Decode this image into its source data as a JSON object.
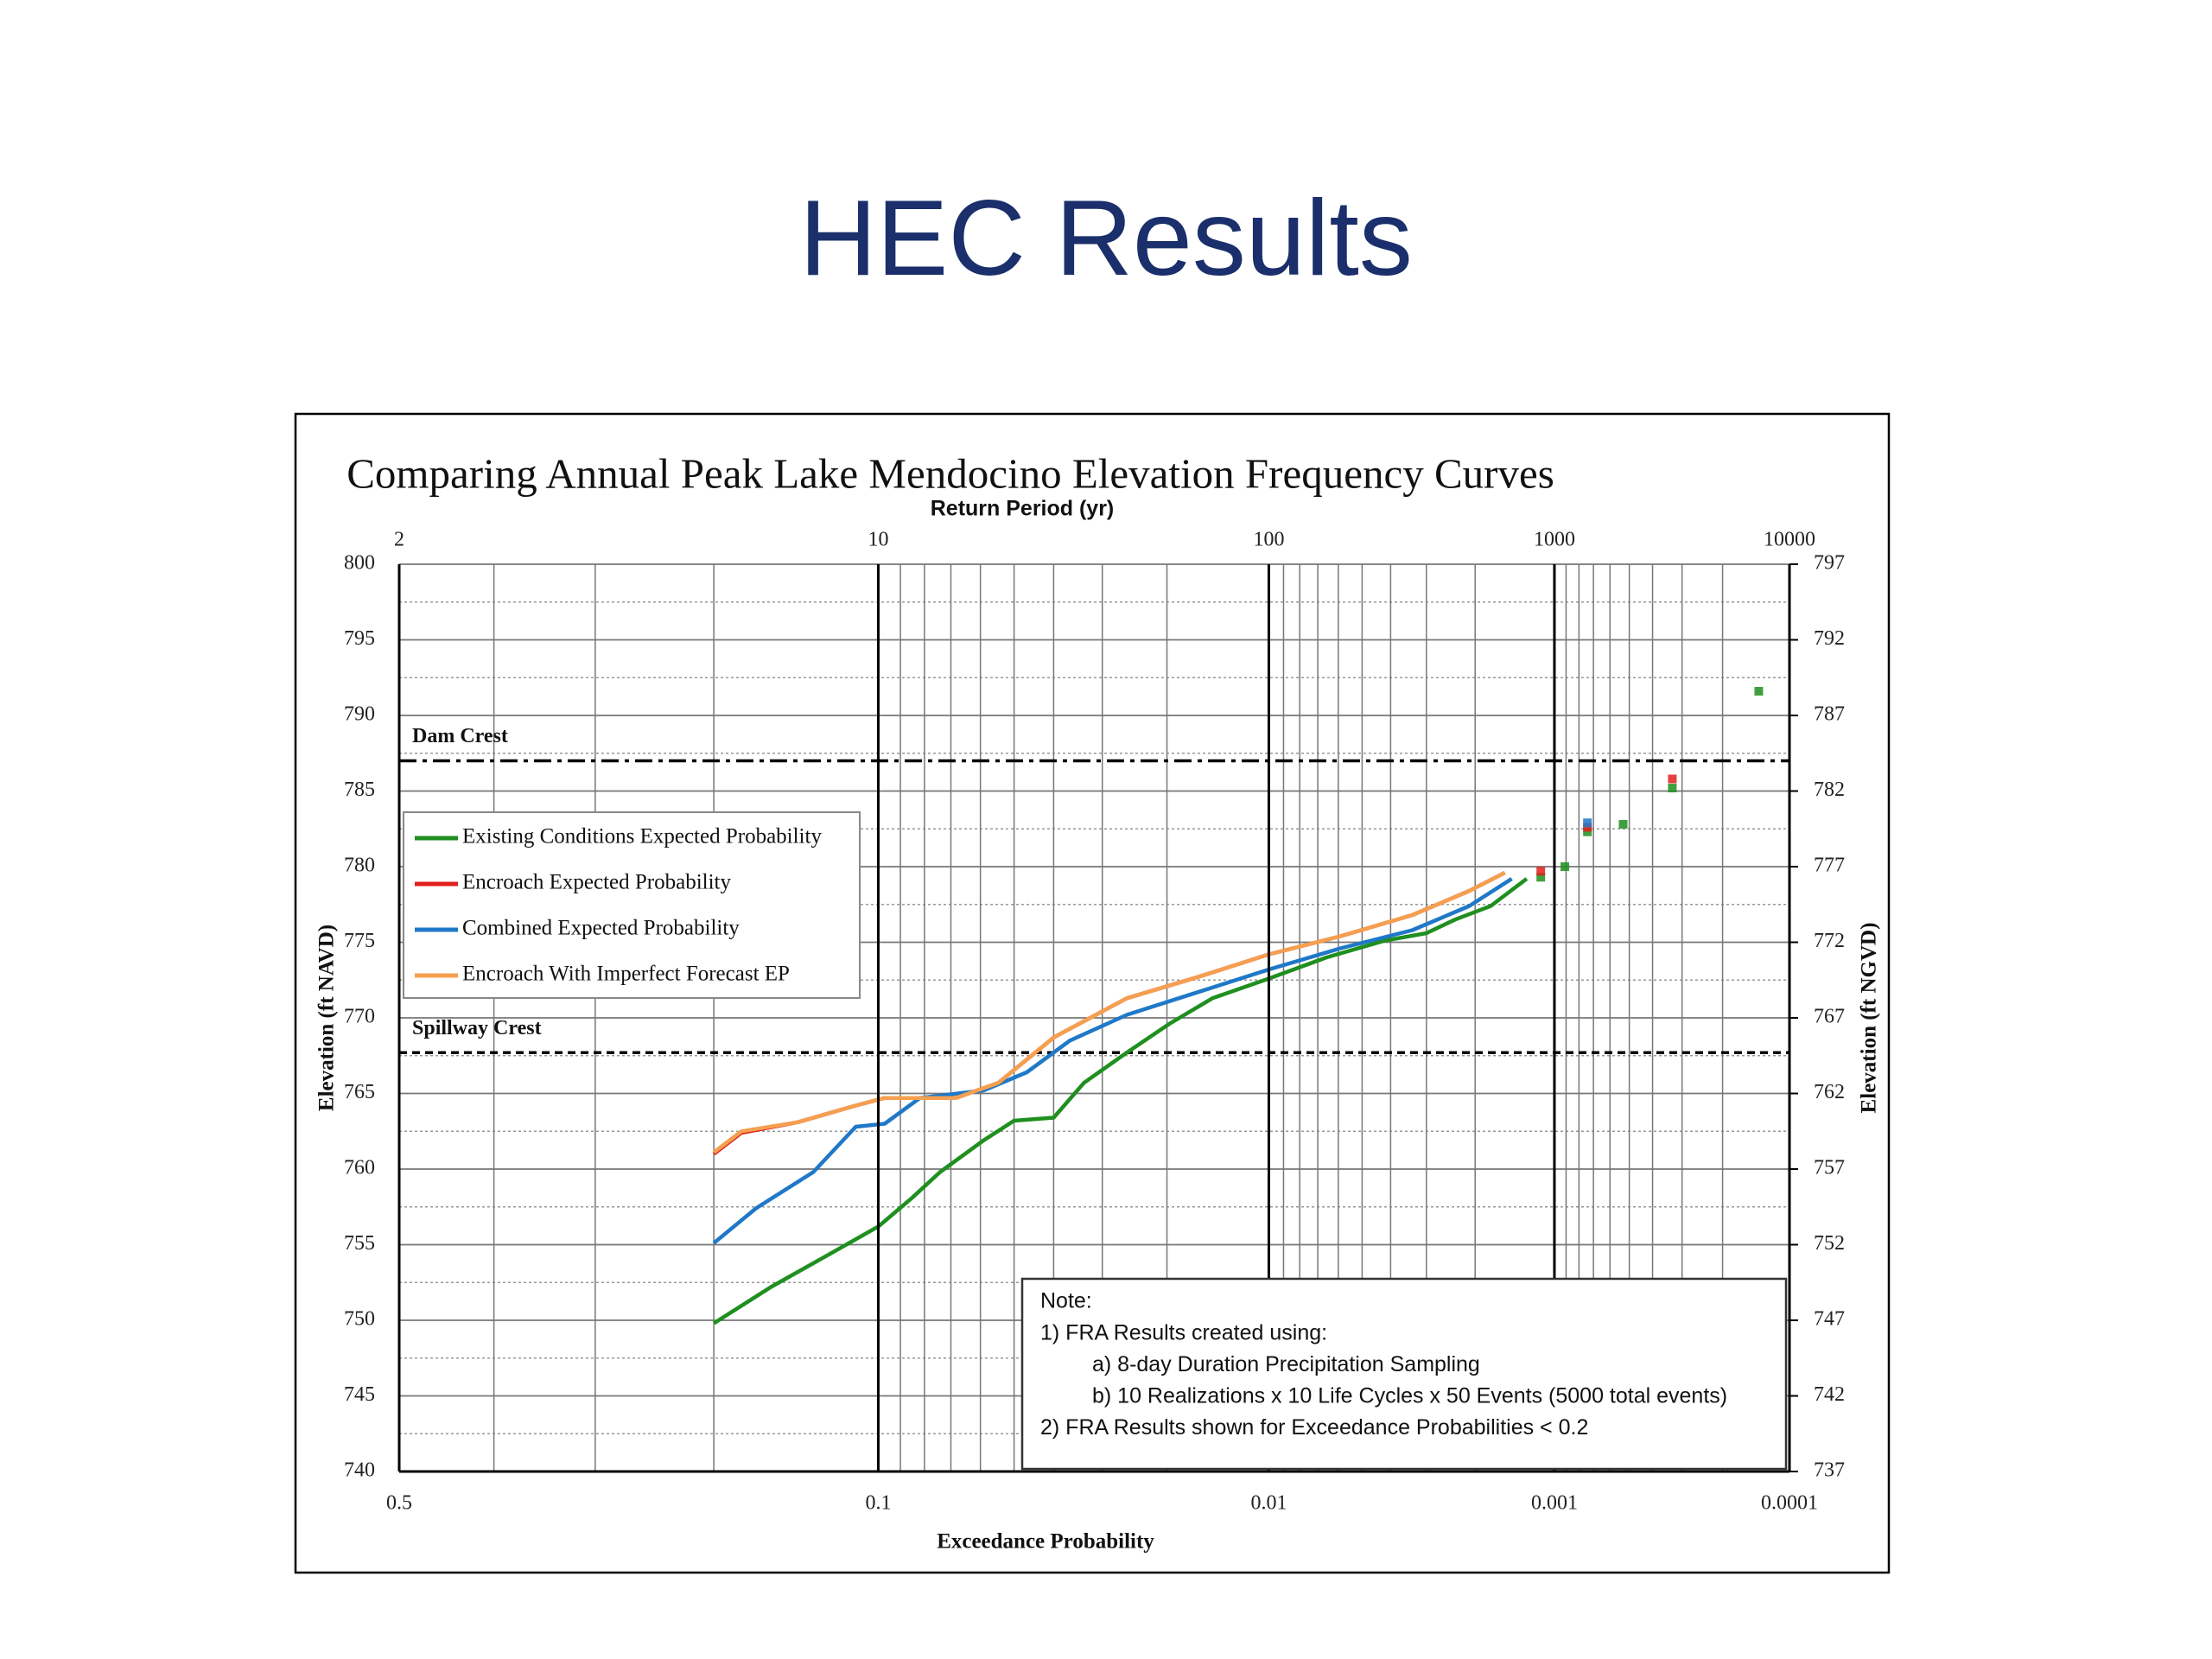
{
  "title": "HEC Results",
  "chart_data": {
    "type": "line",
    "title": "Comparing Annual Peak Lake Mendocino Elevation Frequency Curves",
    "x_label": "Exceedance Probability",
    "x2_label": "Return Period (yr)",
    "y_label": "Elevation (ft NAVD)",
    "y2_label": "Elevation (ft NGVD)",
    "xscale": "normal-probability",
    "xlim": [
      0.5,
      0.0001
    ],
    "xticks": [
      0.5,
      0.1,
      0.01,
      0.001,
      0.0001
    ],
    "xminor": [
      0.4,
      0.3,
      0.2,
      0.09,
      0.08,
      0.07,
      0.06,
      0.05,
      0.04,
      0.03,
      0.02,
      0.009,
      0.008,
      0.007,
      0.006,
      0.005,
      0.004,
      0.003,
      0.002,
      0.0009,
      0.0008,
      0.0007,
      0.0006,
      0.0005,
      0.0004,
      0.0003,
      0.0002
    ],
    "x2ticks": [
      2,
      10,
      100,
      1000,
      10000
    ],
    "ylim": [
      740,
      800
    ],
    "yticks": [
      740,
      745,
      750,
      755,
      760,
      765,
      770,
      775,
      780,
      785,
      790,
      795,
      800
    ],
    "yminor": [
      742.5,
      747.5,
      752.5,
      757.5,
      762.5,
      767.5,
      772.5,
      777.5,
      782.5,
      787.5,
      792.5,
      797.5
    ],
    "y2lim": [
      737,
      797
    ],
    "y2ticks": [
      737,
      742,
      747,
      752,
      757,
      762,
      767,
      772,
      777,
      782,
      787,
      792,
      797
    ],
    "grid": true,
    "legend": "left",
    "reference_lines": [
      {
        "label": "Dam Crest",
        "value": 787,
        "style": "dashdot"
      },
      {
        "label": "Spillway  Crest",
        "value": 767.7,
        "style": "dashed"
      }
    ],
    "series": [
      {
        "name": "Existing Conditions Expected Probability",
        "color": "#1f8f1f",
        "x": [
          0.2,
          0.16,
          0.126,
          0.1,
          0.085,
          0.074,
          0.059,
          0.05,
          0.04,
          0.0335,
          0.0258,
          0.0197,
          0.0148,
          0.01,
          0.00655,
          0.0042,
          0.003,
          0.00237,
          0.00175,
          0.00128
        ],
        "values": [
          749.8,
          752.2,
          754.3,
          756.2,
          758.1,
          759.8,
          761.9,
          763.2,
          763.4,
          765.7,
          767.7,
          769.6,
          771.3,
          772.6,
          774,
          775.1,
          775.6,
          776.5,
          777.4,
          779.2
        ],
        "points_x": [
          0.00113,
          0.00091,
          0.00074,
          0.00053,
          0.00033,
          0.000138
        ],
        "points_y": [
          779.3,
          780,
          782.3,
          782.8,
          785.2,
          791.6
        ]
      },
      {
        "name": "Encroach Expected Probability",
        "color": "#e0201b",
        "x": [
          0.2,
          0.18,
          0.143,
          0.111,
          0.097,
          0.0682,
          0.0545,
          0.04,
          0.0258,
          0.0163,
          0.01,
          0.0059,
          0.00336,
          0.0021,
          0.00155
        ],
        "values": [
          761,
          762.4,
          763.1,
          764.2,
          764.7,
          764.7,
          765.7,
          768.7,
          771.3,
          772.7,
          774.2,
          775.4,
          776.8,
          778.4,
          779.6
        ],
        "points_x": [
          0.00113,
          0.00074,
          0.00033
        ],
        "points_y": [
          779.7,
          782.6,
          785.8
        ]
      },
      {
        "name": "Combined Expected Probability",
        "color": "#1f78c8",
        "x": [
          0.2,
          0.17,
          0.134,
          0.111,
          0.097,
          0.0818,
          0.059,
          0.0466,
          0.0364,
          0.0258,
          0.0163,
          0.01,
          0.0059,
          0.00336,
          0.0021,
          0.00146
        ],
        "values": [
          755.1,
          757.4,
          759.8,
          762.8,
          763,
          764.7,
          765.2,
          766.4,
          768.5,
          770.2,
          771.7,
          773.2,
          774.6,
          775.8,
          777.4,
          779.2
        ],
        "points_x": [
          0.00074
        ],
        "points_y": [
          782.9
        ]
      },
      {
        "name": "Encroach With Imperfect Forecast EP",
        "color": "#f5a050",
        "x": [
          0.2,
          0.18,
          0.143,
          0.111,
          0.097,
          0.0682,
          0.0545,
          0.04,
          0.0258,
          0.0163,
          0.01,
          0.0059,
          0.00336,
          0.0021,
          0.00155
        ],
        "values": [
          761.1,
          762.5,
          763.1,
          764.2,
          764.7,
          764.7,
          765.7,
          768.7,
          771.3,
          772.7,
          774.2,
          775.4,
          776.8,
          778.4,
          779.6
        ]
      }
    ],
    "note": {
      "heading": "Note:",
      "lines": [
        "1) FRA Results created using:",
        "a) 8-day Duration Precipitation Sampling",
        "b) 10 Realizations x 10 Life Cycles x 50 Events (5000 total events)",
        "2) FRA Results shown for Exceedance Probabilities < 0.2"
      ]
    }
  }
}
